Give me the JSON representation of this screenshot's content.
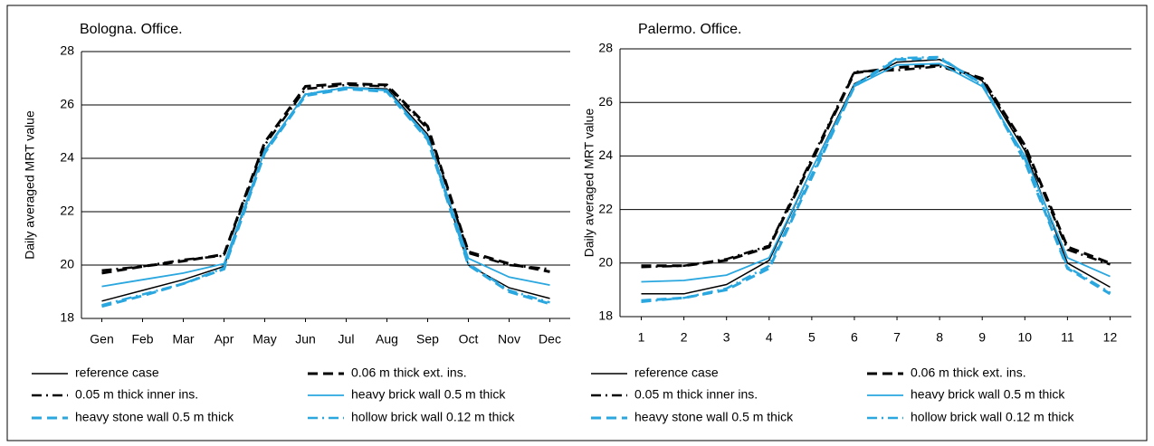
{
  "chart_data": [
    {
      "type": "line",
      "title": "Bologna. Office.",
      "y_label": "Daily averaged MRT value",
      "categories": [
        "Gen",
        "Feb",
        "Mar",
        "Apr",
        "May",
        "Jun",
        "Jul",
        "Aug",
        "Sep",
        "Oct",
        "Nov",
        "Dec"
      ],
      "ylim": [
        18,
        28
      ],
      "yticks": [
        18,
        20,
        22,
        24,
        26,
        28
      ],
      "grid": true,
      "legend": "bottom",
      "series": [
        {
          "name": "reference case",
          "color": "#000000",
          "dash": "solid",
          "values": [
            18.65,
            19.05,
            19.45,
            19.95,
            24.3,
            26.4,
            26.65,
            26.6,
            24.9,
            20.0,
            19.15,
            18.75
          ]
        },
        {
          "name": "0.06 m thick ext. ins.",
          "color": "#000000",
          "dash": "dash",
          "values": [
            19.7,
            19.95,
            20.15,
            20.4,
            24.6,
            26.7,
            26.8,
            26.75,
            25.2,
            20.5,
            20.05,
            19.75
          ]
        },
        {
          "name": "0.05 m thick inner ins.",
          "color": "#000000",
          "dash": "dashdot",
          "values": [
            19.8,
            19.95,
            20.2,
            20.35,
            24.5,
            26.6,
            26.75,
            26.7,
            25.1,
            20.45,
            20.0,
            19.85
          ]
        },
        {
          "name": "heavy brick wall 0.5 m thick",
          "color": "#2aa7df",
          "dash": "solid",
          "values": [
            19.2,
            19.45,
            19.7,
            20.05,
            24.3,
            26.4,
            26.65,
            26.55,
            24.8,
            20.25,
            19.55,
            19.25
          ]
        },
        {
          "name": "heavy stone wall 0.5 m thick",
          "color": "#2aa7df",
          "dash": "dash",
          "values": [
            18.45,
            18.85,
            19.3,
            19.85,
            24.2,
            26.35,
            26.6,
            26.5,
            24.7,
            20.0,
            19.0,
            18.55
          ]
        },
        {
          "name": "hollow brick wall 0.12 m thick",
          "color": "#2aa7df",
          "dash": "dashdot",
          "values": [
            18.5,
            18.9,
            19.3,
            19.9,
            24.25,
            26.4,
            26.65,
            26.55,
            24.75,
            20.05,
            19.05,
            18.6
          ]
        }
      ]
    },
    {
      "type": "line",
      "title": "Palermo. Office.",
      "y_label": "Daily averaged MRT value",
      "categories": [
        "1",
        "2",
        "3",
        "4",
        "5",
        "6",
        "7",
        "8",
        "9",
        "10",
        "11",
        "12"
      ],
      "ylim": [
        18,
        28
      ],
      "yticks": [
        18,
        20,
        22,
        24,
        26,
        28
      ],
      "grid": true,
      "legend": "bottom",
      "series": [
        {
          "name": "reference case",
          "color": "#000000",
          "dash": "solid",
          "values": [
            18.85,
            18.85,
            19.2,
            20.1,
            23.5,
            26.7,
            27.5,
            27.6,
            26.8,
            24.2,
            20.0,
            19.1
          ]
        },
        {
          "name": "0.06 m thick ext. ins.",
          "color": "#000000",
          "dash": "dash",
          "values": [
            19.9,
            19.9,
            20.1,
            20.6,
            23.8,
            27.1,
            27.3,
            27.4,
            26.9,
            24.4,
            20.6,
            20.0
          ]
        },
        {
          "name": "0.05 m thick inner ins.",
          "color": "#000000",
          "dash": "dashdot",
          "values": [
            19.85,
            19.9,
            20.15,
            20.65,
            23.9,
            27.15,
            27.2,
            27.35,
            26.85,
            24.3,
            20.5,
            19.95
          ]
        },
        {
          "name": "heavy brick wall 0.5 m thick",
          "color": "#2aa7df",
          "dash": "solid",
          "values": [
            19.3,
            19.35,
            19.55,
            20.2,
            23.5,
            26.6,
            27.4,
            27.45,
            26.6,
            24.0,
            20.2,
            19.5
          ]
        },
        {
          "name": "heavy stone wall 0.5 m thick",
          "color": "#2aa7df",
          "dash": "dash",
          "values": [
            18.6,
            18.7,
            19.0,
            19.8,
            23.2,
            26.6,
            27.6,
            27.65,
            26.7,
            23.8,
            19.8,
            18.85
          ]
        },
        {
          "name": "hollow brick wall 0.12 m thick",
          "color": "#2aa7df",
          "dash": "dashdot",
          "values": [
            18.55,
            18.7,
            19.05,
            19.9,
            23.3,
            26.65,
            27.65,
            27.7,
            26.65,
            23.9,
            19.85,
            18.9
          ]
        }
      ]
    }
  ]
}
